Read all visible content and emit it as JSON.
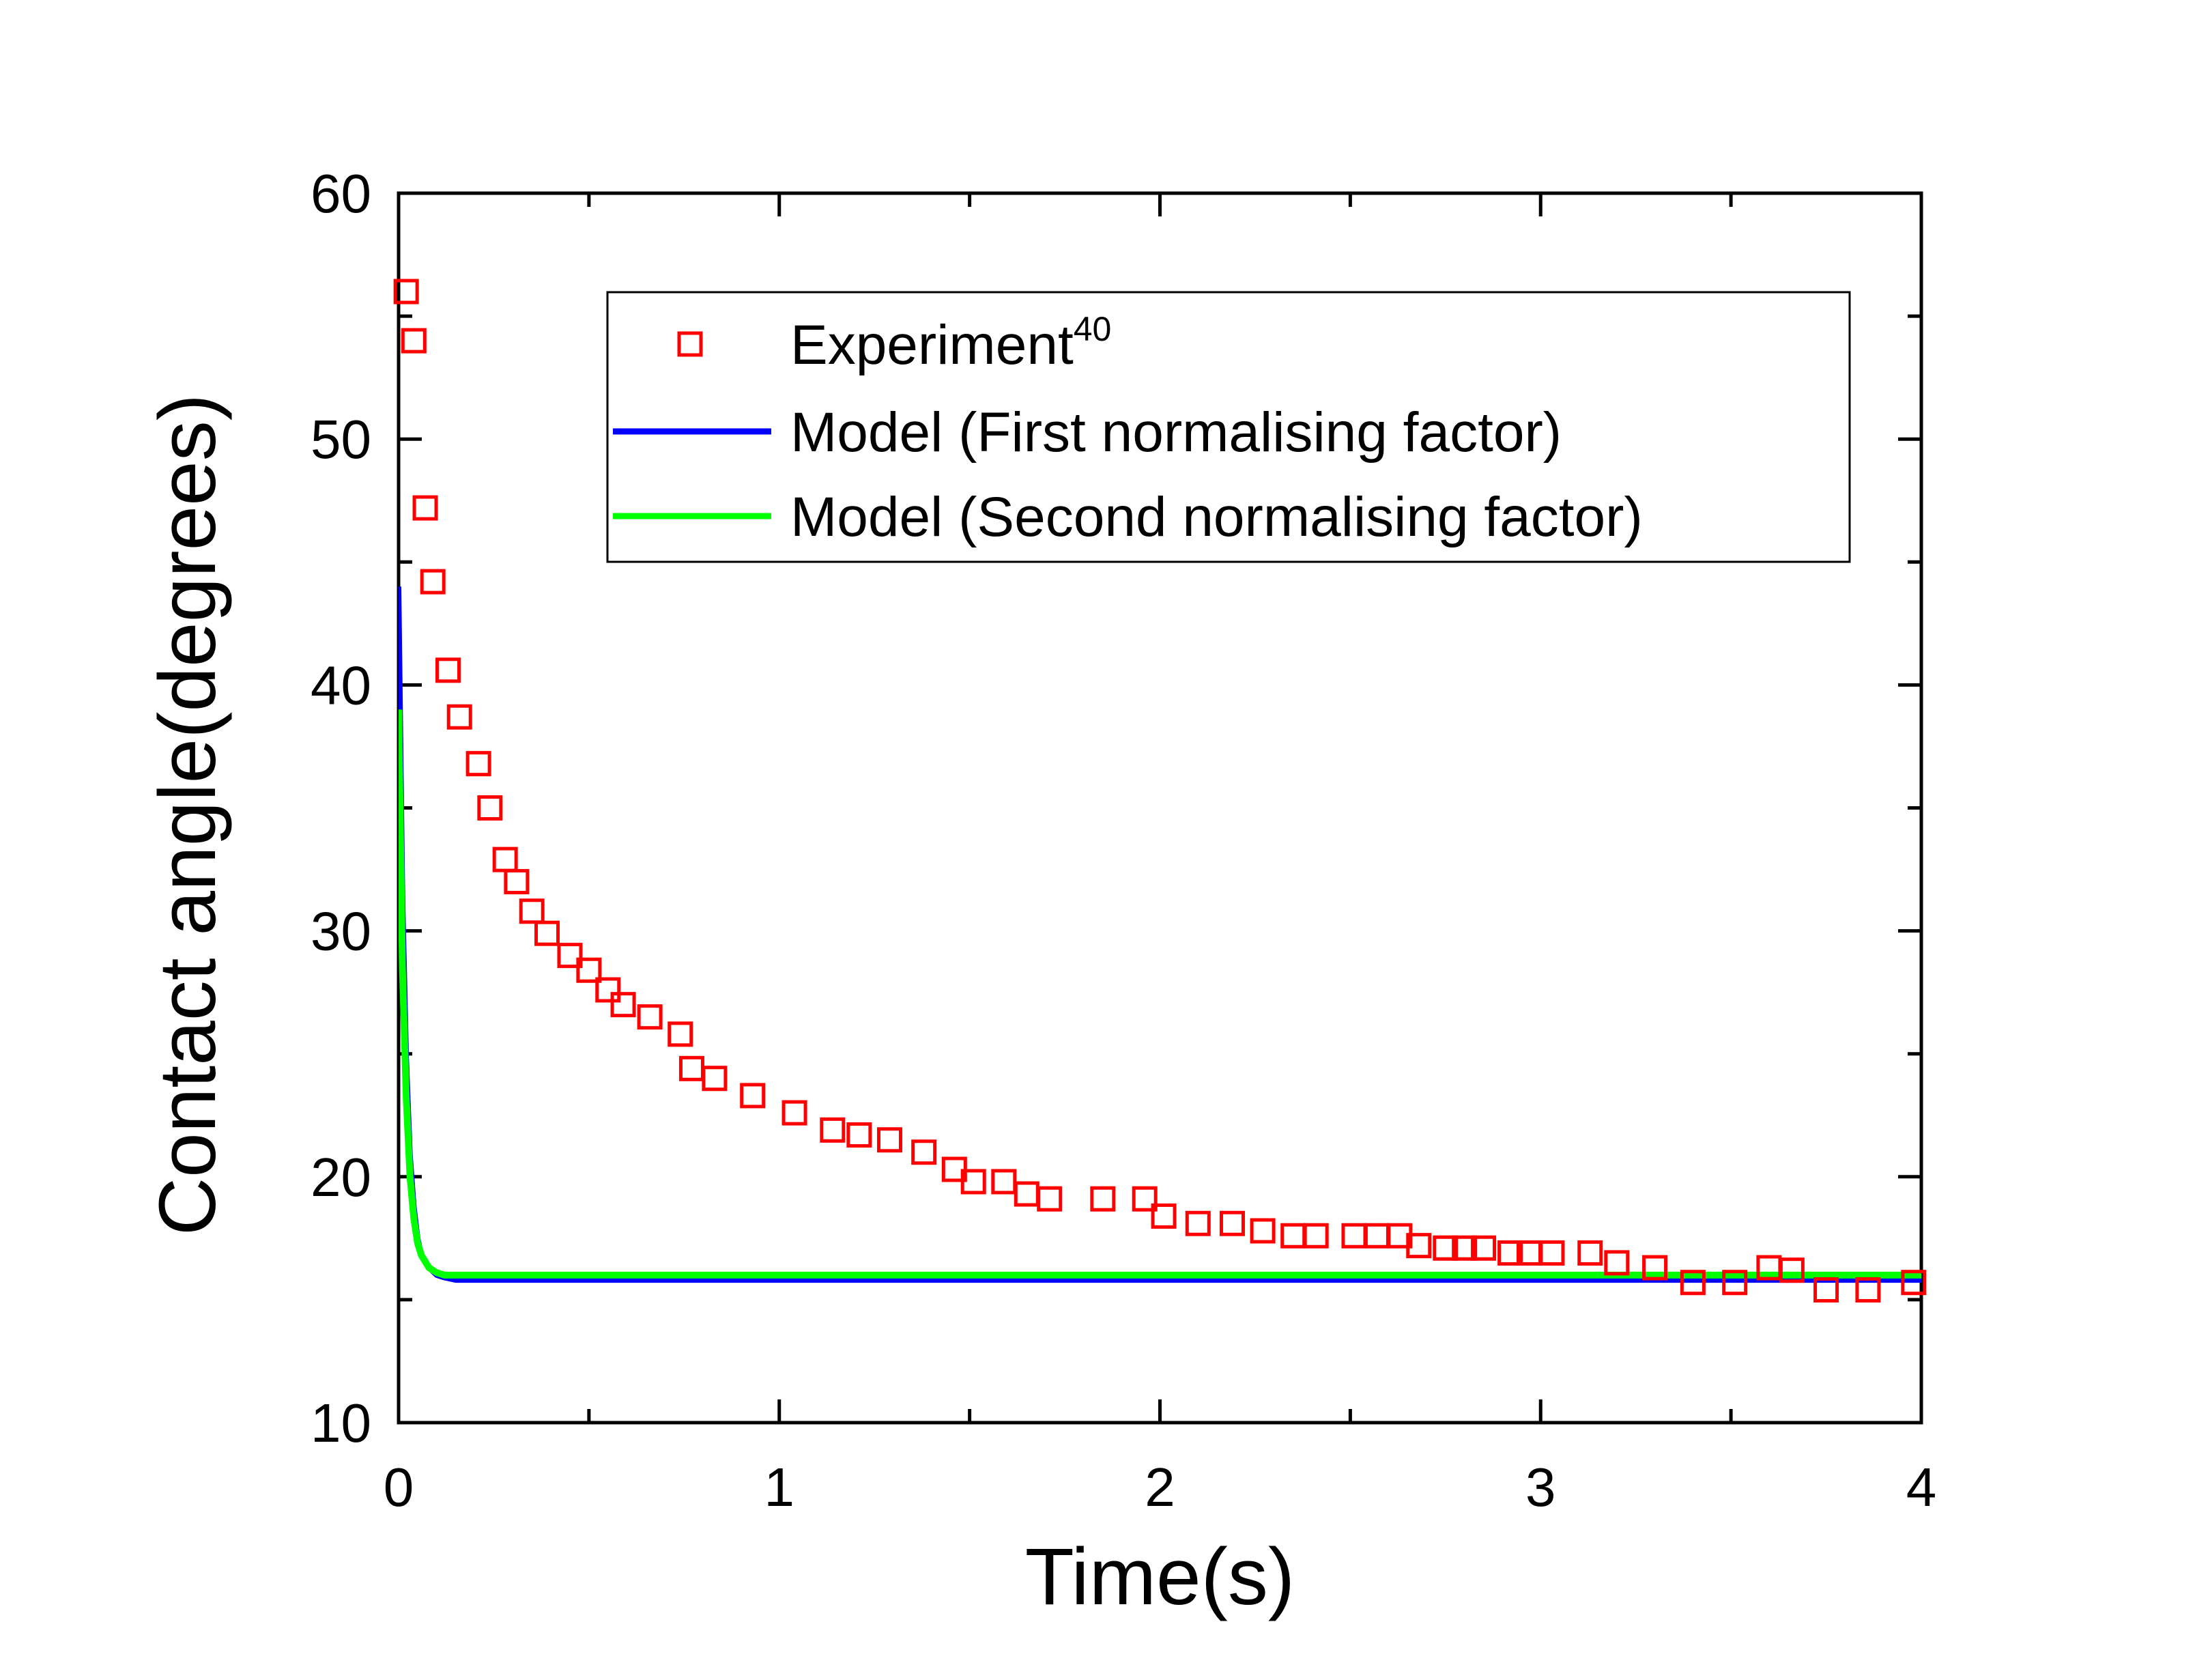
{
  "chart_data": {
    "type": "scatter",
    "title": "",
    "xlabel": "Time(s)",
    "ylabel": "Contact angle(degrees)",
    "xlim": [
      0,
      4
    ],
    "ylim": [
      10,
      60
    ],
    "xticks": [
      0,
      1,
      2,
      3,
      4
    ],
    "xtick_labels": [
      "0",
      "1",
      "2",
      "3",
      "4"
    ],
    "yticks": [
      10,
      20,
      30,
      40,
      50,
      60
    ],
    "ytick_labels": [
      "10",
      "20",
      "30",
      "40",
      "50",
      "60"
    ],
    "grid": false,
    "legend_position": "top-right",
    "series": [
      {
        "name": "Experiment",
        "name_superscript": "40",
        "kind": "markers",
        "marker": "open-square",
        "color": "#ff0000",
        "x": [
          0.02,
          0.04,
          0.07,
          0.09,
          0.13,
          0.16,
          0.21,
          0.24,
          0.28,
          0.31,
          0.35,
          0.39,
          0.45,
          0.5,
          0.55,
          0.59,
          0.66,
          0.74,
          0.77,
          0.83,
          0.93,
          1.04,
          1.14,
          1.21,
          1.29,
          1.38,
          1.46,
          1.51,
          1.59,
          1.65,
          1.71,
          1.85,
          1.96,
          2.01,
          2.1,
          2.19,
          2.27,
          2.35,
          2.41,
          2.51,
          2.57,
          2.63,
          2.68,
          2.75,
          2.8,
          2.85,
          2.92,
          2.97,
          3.03,
          3.13,
          3.2,
          3.3,
          3.4,
          3.51,
          3.6,
          3.66,
          3.75,
          3.86,
          3.98
        ],
        "y": [
          56.0,
          54.0,
          47.2,
          44.2,
          40.6,
          38.7,
          36.8,
          35.0,
          32.9,
          32.0,
          30.8,
          29.9,
          29.0,
          28.4,
          27.6,
          27.0,
          26.5,
          25.8,
          24.4,
          24.0,
          23.3,
          22.6,
          21.9,
          21.7,
          21.5,
          21.0,
          20.3,
          19.8,
          19.8,
          19.3,
          19.1,
          19.1,
          19.1,
          18.4,
          18.1,
          18.1,
          17.8,
          17.6,
          17.6,
          17.6,
          17.6,
          17.6,
          17.2,
          17.1,
          17.1,
          17.1,
          16.9,
          16.9,
          16.9,
          16.9,
          16.5,
          16.3,
          15.7,
          15.7,
          16.3,
          16.2,
          15.4,
          15.4,
          15.7
        ]
      },
      {
        "name": "Model (First normalising factor)",
        "kind": "line",
        "color": "#0000ff",
        "x": [
          0.0,
          0.01,
          0.02,
          0.03,
          0.04,
          0.05,
          0.06,
          0.08,
          0.1,
          0.12,
          0.15,
          0.2,
          0.4,
          1.0,
          2.0,
          3.0,
          4.0
        ],
        "y": [
          44.0,
          31.5,
          24.8,
          20.9,
          18.8,
          17.5,
          16.8,
          16.3,
          16.0,
          15.9,
          15.8,
          15.8,
          15.8,
          15.8,
          15.8,
          15.8,
          15.8
        ]
      },
      {
        "name": "Model (Second normalising factor)",
        "kind": "line",
        "color": "#00ff00",
        "x": [
          0.0,
          0.01,
          0.02,
          0.03,
          0.04,
          0.05,
          0.06,
          0.08,
          0.1,
          0.12,
          0.15,
          0.2,
          0.4,
          1.0,
          2.0,
          3.0,
          4.0
        ],
        "y": [
          39.0,
          28.5,
          23.2,
          20.0,
          18.3,
          17.3,
          16.8,
          16.3,
          16.1,
          16.0,
          16.0,
          16.0,
          16.0,
          16.0,
          16.0,
          16.0,
          16.0
        ]
      }
    ]
  }
}
